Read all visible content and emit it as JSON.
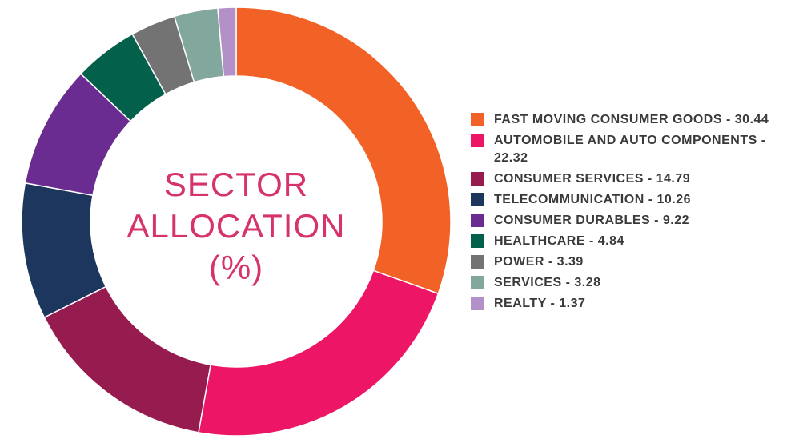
{
  "chart_data": {
    "type": "pie",
    "donut": true,
    "title": "SECTOR ALLOCATION (%)",
    "categories": [
      "FAST MOVING CONSUMER GOODS - 30.44",
      "AUTOMOBILE AND AUTO COMPONENTS - 22.32",
      "CONSUMER SERVICES - 14.79",
      "TELECOMMUNICATION - 10.26",
      "CONSUMER DURABLES - 9.22",
      "HEALTHCARE - 4.84",
      "POWER - 3.39",
      "SERVICES - 3.28",
      "REALTY - 1.37"
    ],
    "values": [
      30.44,
      22.32,
      14.79,
      10.26,
      9.22,
      4.84,
      3.39,
      3.28,
      1.37
    ],
    "colors": [
      "#f26125",
      "#ed1566",
      "#961b4e",
      "#1d365e",
      "#6a2c91",
      "#02604b",
      "#737373",
      "#82a79c",
      "#b390c8"
    ],
    "legend": "right"
  }
}
